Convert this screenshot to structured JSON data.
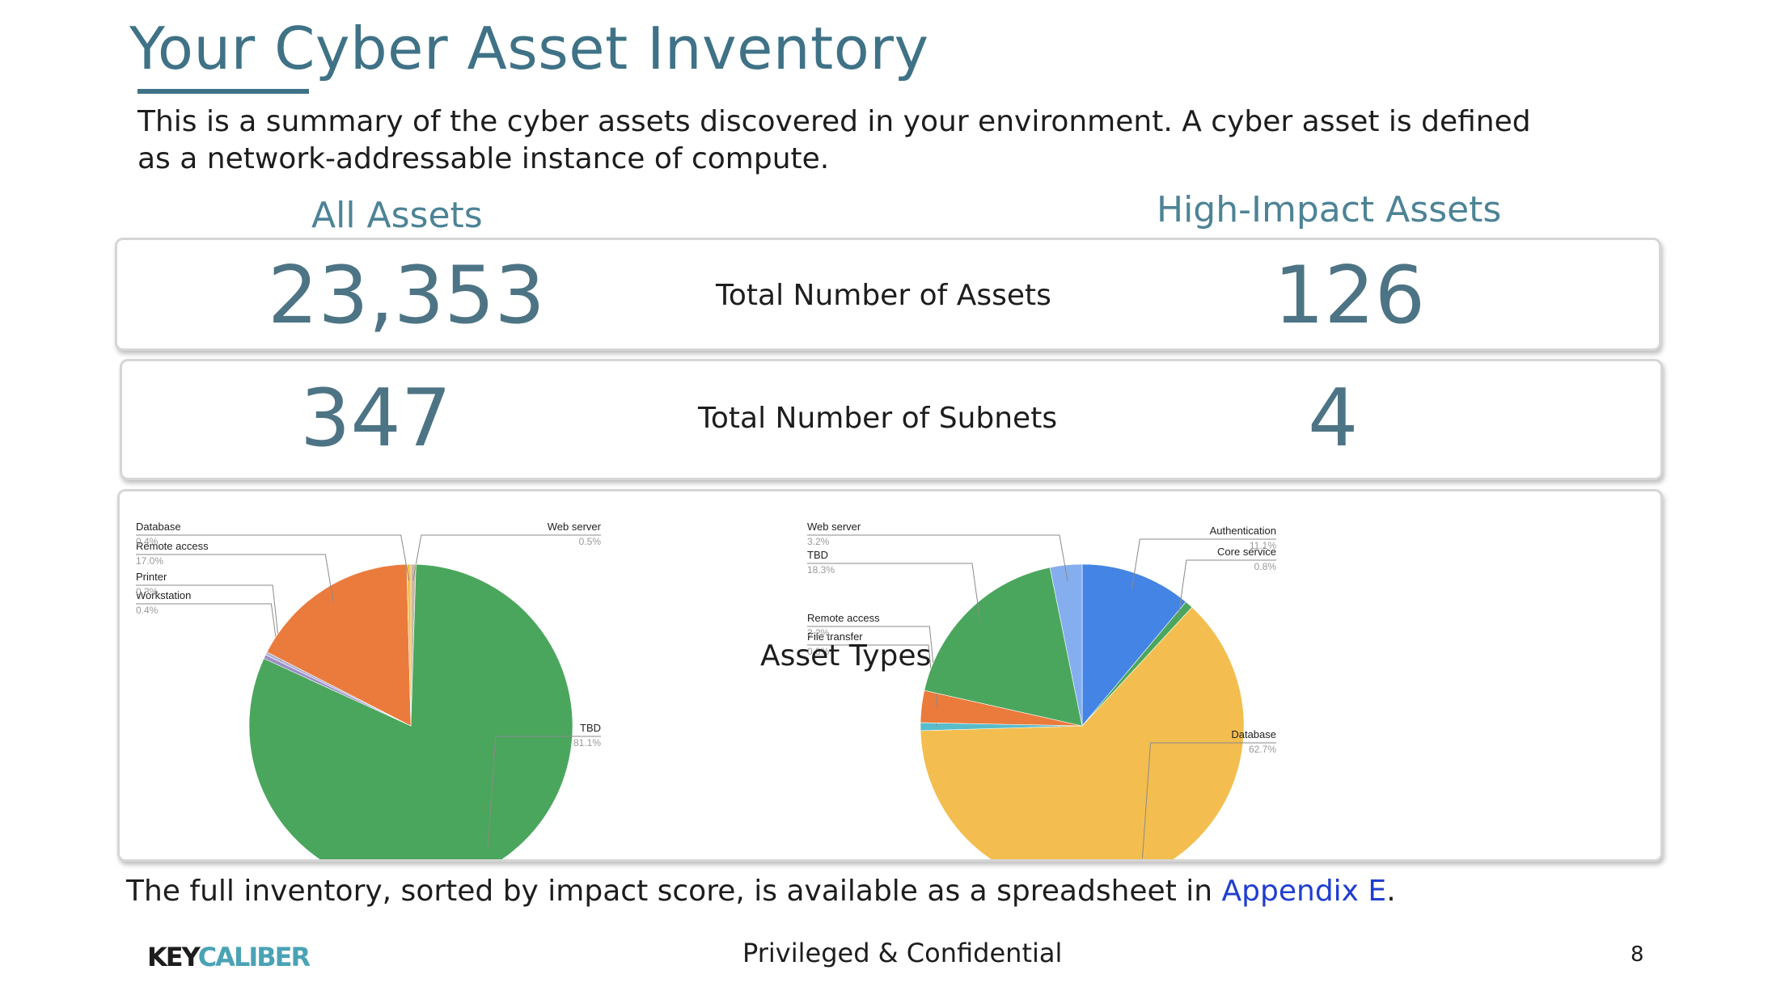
{
  "header": {
    "title": "Your Cyber Asset Inventory",
    "subtitle": "This is a summary of the cyber assets discovered in your environment. A cyber asset is defined as a network-addressable instance of compute."
  },
  "columns": {
    "all": "All Assets",
    "high": "High-Impact Assets"
  },
  "metrics": [
    {
      "label": "Total Number of Assets",
      "all": "23,353",
      "high": "126"
    },
    {
      "label": "Total Number of Subnets",
      "all": "347",
      "high": "4"
    }
  ],
  "charts_center_label": "Asset Types",
  "footer": {
    "text_before": "The full inventory, sorted by impact score, is available as a spreadsheet in ",
    "link": "Appendix E",
    "text_after": ".",
    "confidential": "Privileged & Confidential",
    "page_number": "8",
    "logo_key": "KEY",
    "logo_caliber": "CALIBER"
  },
  "colors": {
    "accent": "#3f7286",
    "green": "#4ba65d",
    "orange": "#ea7b3c",
    "yellow": "#f3be4f",
    "blue": "#4484e4",
    "light_blue": "#84aeee",
    "teal": "#59bccb",
    "gray": "#c9b9a8",
    "purple": "#9a8fc6"
  },
  "chart_data": [
    {
      "type": "pie",
      "title": "",
      "slices": [
        {
          "label": "Web server",
          "value": 0.5,
          "pct": "0.5%",
          "color": "#c9b9a8"
        },
        {
          "label": "TBD",
          "value": 81.1,
          "pct": "81.1%",
          "color": "#4ba65d"
        },
        {
          "label": "Workstation",
          "value": 0.4,
          "pct": "0.4%",
          "color": "#9a8fc6"
        },
        {
          "label": "Printer",
          "value": 0.3,
          "pct": "0.3%",
          "color": "#b3b3d6"
        },
        {
          "label": "Remote access",
          "value": 17.0,
          "pct": "17.0%",
          "color": "#ea7b3c"
        },
        {
          "label": "Database",
          "value": 0.4,
          "pct": "0.4%",
          "color": "#f3be4f"
        }
      ]
    },
    {
      "type": "pie",
      "title": "",
      "slices": [
        {
          "label": "Authentication",
          "value": 11.1,
          "pct": "11.1%",
          "color": "#4484e4"
        },
        {
          "label": "Core service",
          "value": 0.8,
          "pct": "0.8%",
          "color": "#4ba65d"
        },
        {
          "label": "Database",
          "value": 62.7,
          "pct": "62.7%",
          "color": "#f3be4f"
        },
        {
          "label": "File transfer",
          "value": 0.8,
          "pct": "0.8%",
          "color": "#59bccb"
        },
        {
          "label": "Remote access",
          "value": 3.2,
          "pct": "3.2%",
          "color": "#ea7b3c"
        },
        {
          "label": "TBD",
          "value": 18.3,
          "pct": "18.3%",
          "color": "#4ba65d"
        },
        {
          "label": "Web server",
          "value": 3.2,
          "pct": "3.2%",
          "color": "#84aeee"
        }
      ]
    }
  ]
}
